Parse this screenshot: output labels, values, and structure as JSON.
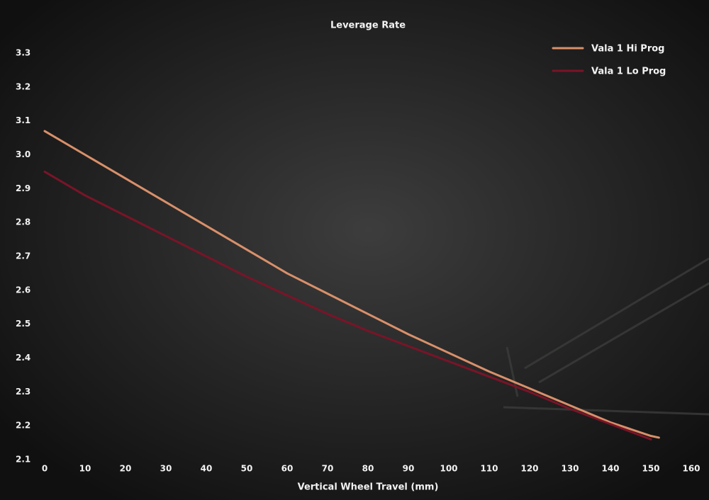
{
  "chart_data": {
    "type": "line",
    "title": "Leverage Rate",
    "x_label": "Vertical Wheel Travel (mm)",
    "xlim": [
      0,
      160
    ],
    "xticks": [
      0,
      10,
      20,
      30,
      40,
      50,
      60,
      70,
      80,
      90,
      100,
      110,
      120,
      130,
      140,
      150,
      160
    ],
    "ylim": [
      2.1,
      3.3
    ],
    "yticks": [
      2.1,
      2.2,
      2.3,
      2.4,
      2.5,
      2.6,
      2.7,
      2.8,
      2.9,
      {
        "value": 3,
        "label": "3.0"
      },
      3.1,
      3.2,
      3.3
    ],
    "grid": false,
    "legend": "top-right",
    "series": [
      {
        "name": "Vala 1 Hi Prog",
        "color": "#d9906a",
        "x": [
          0,
          10,
          20,
          30,
          40,
          50,
          60,
          70,
          80,
          90,
          100,
          110,
          120,
          130,
          140,
          150,
          152
        ],
        "values": [
          3.07,
          3.0,
          2.93,
          2.86,
          2.79,
          2.72,
          2.65,
          2.59,
          2.53,
          2.47,
          2.415,
          2.36,
          2.31,
          2.26,
          2.21,
          2.17,
          2.165
        ]
      },
      {
        "name": "Vala 1 Lo Prog",
        "color": "#7a1428",
        "x": [
          0,
          10,
          20,
          30,
          40,
          50,
          60,
          70,
          80,
          90,
          100,
          110,
          120,
          130,
          140,
          150
        ],
        "values": [
          2.95,
          2.88,
          2.82,
          2.76,
          2.7,
          2.64,
          2.585,
          2.53,
          2.48,
          2.435,
          2.39,
          2.345,
          2.3,
          2.25,
          2.205,
          2.16
        ]
      }
    ]
  }
}
